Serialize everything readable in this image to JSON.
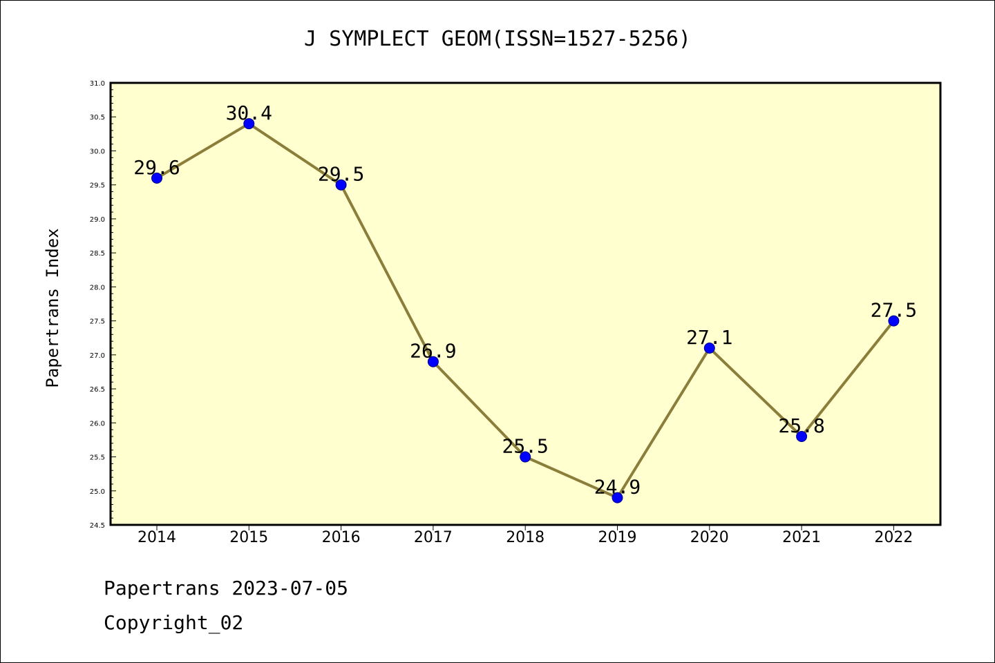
{
  "chart_data": {
    "type": "line",
    "title": "J SYMPLECT GEOM(ISSN=1527-5256)",
    "xlabel": "",
    "ylabel": "Papertrans Index",
    "categories": [
      "2014",
      "2015",
      "2016",
      "2017",
      "2018",
      "2019",
      "2020",
      "2021",
      "2022"
    ],
    "values": [
      29.6,
      30.4,
      29.5,
      26.9,
      25.5,
      24.9,
      27.1,
      25.8,
      27.5
    ],
    "data_labels": [
      "29.6",
      "30.4",
      "29.5",
      "26.9",
      "25.5",
      "24.9",
      "27.1",
      "25.8",
      "27.5"
    ],
    "ylim": [
      24.5,
      31.0
    ],
    "yticks": [
      "24.5",
      "25.0",
      "25.5",
      "26.0",
      "26.5",
      "27.0",
      "27.5",
      "28.0",
      "28.5",
      "29.0",
      "29.5",
      "30.0",
      "30.5",
      "31.0"
    ],
    "grid": false,
    "legend": "none",
    "colors": {
      "plot_background": "#ffffd0",
      "line": "#8b7d3a",
      "marker": "#0000ff"
    }
  },
  "footer": {
    "line1": "Papertrans 2023-07-05",
    "line2": "Copyright_02"
  }
}
